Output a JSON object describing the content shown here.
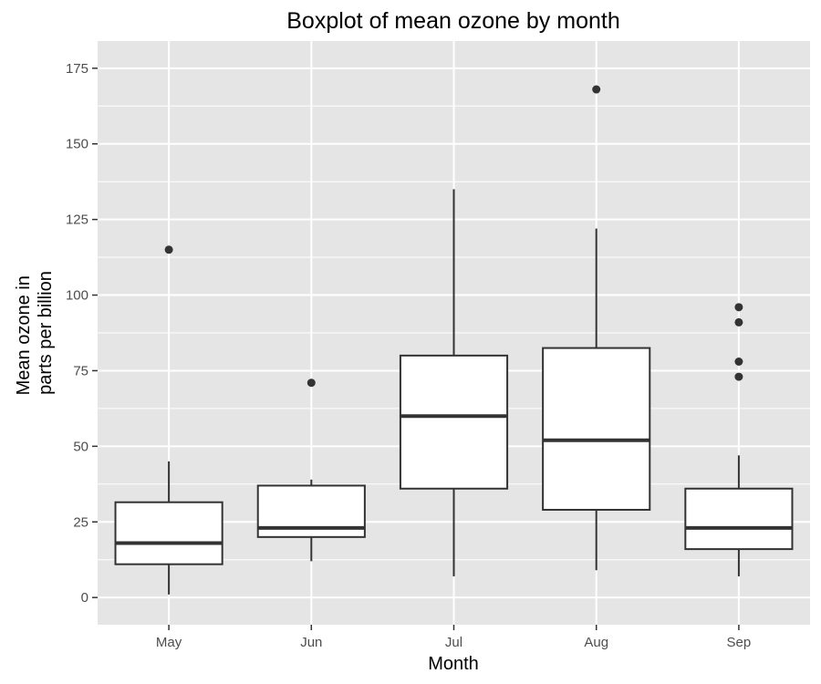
{
  "chart_data": {
    "type": "boxplot",
    "title": "Boxplot of mean ozone by month",
    "xlabel": "Month",
    "ylabel_lines": [
      "Mean ozone in",
      "parts per billion"
    ],
    "categories": [
      "May",
      "Jun",
      "Jul",
      "Aug",
      "Sep"
    ],
    "ylim": [
      -9,
      184
    ],
    "yticks": [
      0,
      25,
      50,
      75,
      100,
      125,
      150,
      175
    ],
    "grid": true,
    "boxes": [
      {
        "category": "May",
        "whisker_low": 1,
        "q1": 11,
        "median": 18,
        "q3": 31.5,
        "whisker_high": 45,
        "outliers": [
          115
        ]
      },
      {
        "category": "Jun",
        "whisker_low": 12,
        "q1": 20,
        "median": 23,
        "q3": 37,
        "whisker_high": 39,
        "outliers": [
          71
        ]
      },
      {
        "category": "Jul",
        "whisker_low": 7,
        "q1": 36,
        "median": 60,
        "q3": 80,
        "whisker_high": 135,
        "outliers": []
      },
      {
        "category": "Aug",
        "whisker_low": 9,
        "q1": 29,
        "median": 52,
        "q3": 82.5,
        "whisker_high": 122,
        "outliers": [
          168
        ]
      },
      {
        "category": "Sep",
        "whisker_low": 7,
        "q1": 16,
        "median": 23,
        "q3": 36,
        "whisker_high": 47,
        "outliers": [
          73,
          78,
          91,
          96
        ]
      }
    ],
    "colors": {
      "panel_background": "#e5e5e5",
      "grid": "#ffffff",
      "box_fill": "#ffffff",
      "box_stroke": "#333333",
      "outlier": "#333333",
      "tick_text": "#4d4d4d",
      "tick_mark": "#333333"
    }
  }
}
